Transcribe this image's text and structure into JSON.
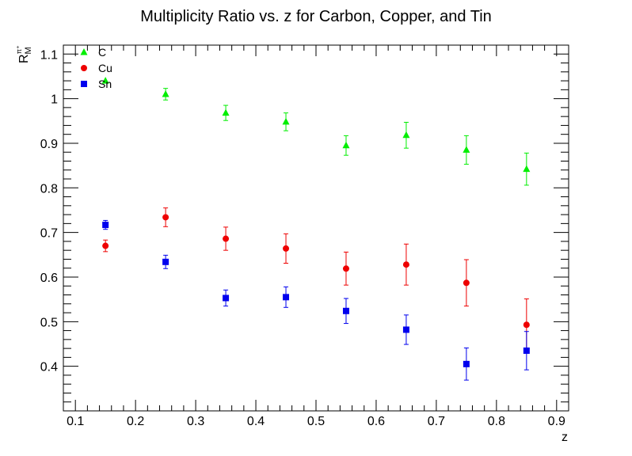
{
  "chart_data": {
    "type": "scatter",
    "title": "Multiplicity Ratio vs. z for Carbon, Copper, and Tin",
    "xlabel": "z",
    "ylabel": {
      "base": "R",
      "sup": "π⁺",
      "sub": "M"
    },
    "xlim": [
      0.08,
      0.92
    ],
    "ylim": [
      0.3,
      1.12
    ],
    "grid": false,
    "legend_position": "top-left",
    "x_ticks": [
      "0.1",
      "0.2",
      "0.3",
      "0.4",
      "0.5",
      "0.6",
      "0.7",
      "0.8",
      "0.9"
    ],
    "y_ticks": [
      "0.4",
      "0.5",
      "0.6",
      "0.7",
      "0.8",
      "0.9",
      "1",
      "1.1"
    ],
    "series": [
      {
        "name": "C",
        "color": "#00ee00",
        "marker": "triangle",
        "x": [
          0.15,
          0.25,
          0.35,
          0.45,
          0.55,
          0.65,
          0.75,
          0.85
        ],
        "y": [
          1.04,
          1.01,
          0.968,
          0.948,
          0.895,
          0.918,
          0.885,
          0.842
        ],
        "err": [
          0.0,
          0.013,
          0.017,
          0.02,
          0.022,
          0.029,
          0.032,
          0.036
        ]
      },
      {
        "name": "Cu",
        "color": "#ee0000",
        "marker": "circle",
        "x": [
          0.15,
          0.25,
          0.35,
          0.45,
          0.55,
          0.65,
          0.75,
          0.85
        ],
        "y": [
          0.67,
          0.734,
          0.686,
          0.664,
          0.619,
          0.628,
          0.587,
          0.493
        ],
        "err": [
          0.013,
          0.021,
          0.026,
          0.033,
          0.037,
          0.046,
          0.052,
          0.058
        ]
      },
      {
        "name": "Sn",
        "color": "#0000ee",
        "marker": "square",
        "x": [
          0.15,
          0.25,
          0.35,
          0.45,
          0.55,
          0.65,
          0.75,
          0.85
        ],
        "y": [
          0.717,
          0.634,
          0.553,
          0.555,
          0.524,
          0.482,
          0.405,
          0.435
        ],
        "err": [
          0.01,
          0.015,
          0.018,
          0.023,
          0.028,
          0.033,
          0.036,
          0.043
        ]
      }
    ]
  }
}
